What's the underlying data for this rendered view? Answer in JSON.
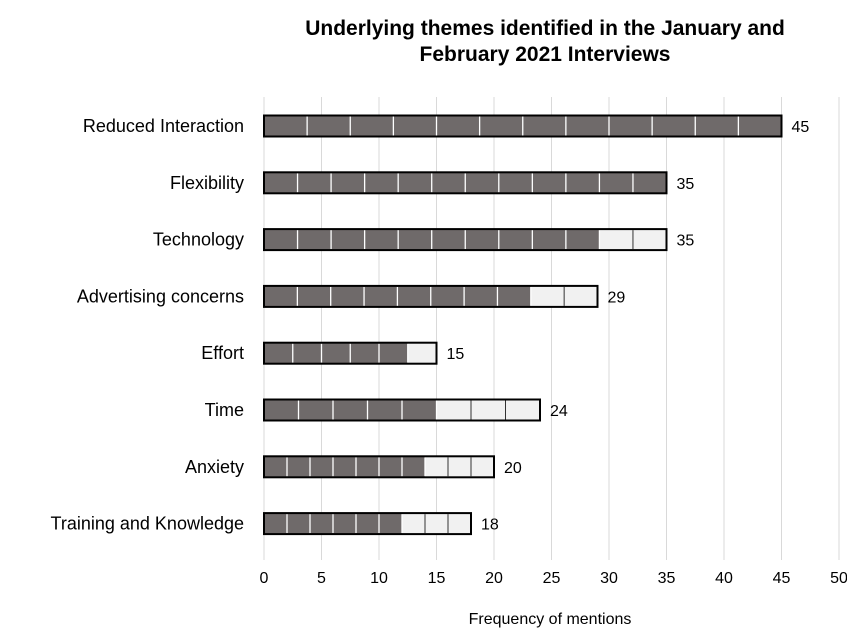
{
  "chart_data": {
    "type": "bar",
    "orientation": "horizontal",
    "title_lines": [
      "Underlying themes identified in the January and",
      "February 2021 Interviews"
    ],
    "xlabel": "Frequency of mentions",
    "ylabel": "",
    "xlim": [
      0,
      50
    ],
    "xticks": [
      0,
      5,
      10,
      15,
      20,
      25,
      30,
      35,
      40,
      45,
      50
    ],
    "grid": "vertical",
    "categories": [
      "Reduced Interaction",
      "Flexibility",
      "Technology",
      "Advertising concerns",
      "Effort",
      "Time",
      "Anxiety",
      "Training and Knowledge"
    ],
    "totals": [
      45,
      35,
      35,
      29,
      15,
      24,
      20,
      18
    ],
    "segment_counts": [
      12,
      12,
      12,
      10,
      6,
      8,
      10,
      9
    ],
    "dark_segment_counts": [
      12,
      12,
      10,
      8,
      5,
      5,
      7,
      6
    ],
    "colors": {
      "dark": "#6f6a6a",
      "light": "#f1f1f1",
      "outline": "#000000",
      "divider": "#ffffff",
      "grid": "#d9d9d9"
    }
  }
}
